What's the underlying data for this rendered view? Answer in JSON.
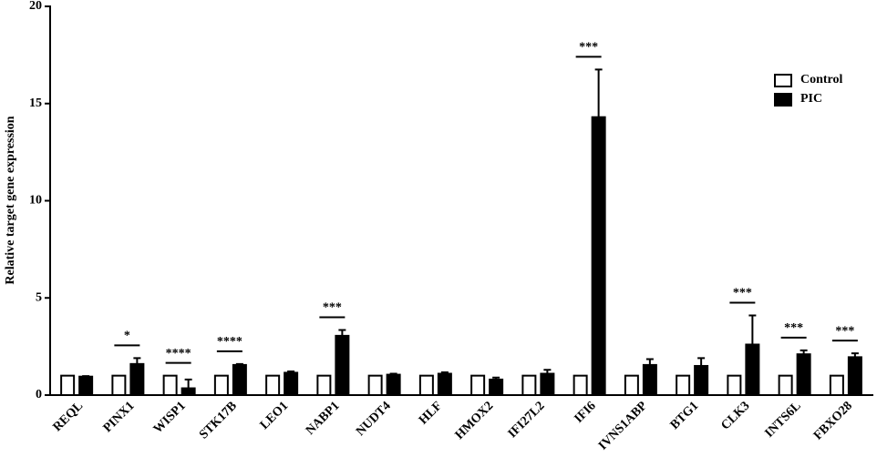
{
  "chart_data": {
    "type": "bar",
    "y_label": "Relative target gene expression",
    "categories": [
      "REQL",
      "PINX1",
      "WISP1",
      "STK17B",
      "LEO1",
      "NABP1",
      "NUDT4",
      "HLF",
      "HMOX2",
      "IFI27L2",
      "IFI6",
      "IVNS1ABP",
      "BTG1",
      "CLK3",
      "INTS6L",
      "FBXO28"
    ],
    "series": [
      {
        "name": "Control",
        "color": "#ffffff",
        "values": [
          1,
          1,
          1,
          1,
          1,
          1,
          1,
          1,
          1,
          1,
          1,
          1,
          1,
          1,
          1,
          1
        ]
      },
      {
        "name": "PIC",
        "color": "#000000",
        "values": [
          0.95,
          1.6,
          0.35,
          1.55,
          1.15,
          3.05,
          1.05,
          1.1,
          0.8,
          1.1,
          14.3,
          1.55,
          1.5,
          2.6,
          2.1,
          1.95
        ],
        "errors": [
          0.03,
          0.3,
          0.45,
          0.05,
          0.07,
          0.3,
          0.05,
          0.07,
          0.1,
          0.2,
          2.45,
          0.3,
          0.4,
          1.5,
          0.2,
          0.2
        ]
      }
    ],
    "significance": [
      null,
      "*",
      "****",
      "****",
      null,
      "***",
      null,
      null,
      null,
      null,
      "***",
      null,
      null,
      "***",
      "***",
      "***"
    ],
    "ylim": [
      0,
      20
    ],
    "yticks": [
      0,
      5,
      10,
      15,
      20
    ],
    "legend": "upper right"
  }
}
